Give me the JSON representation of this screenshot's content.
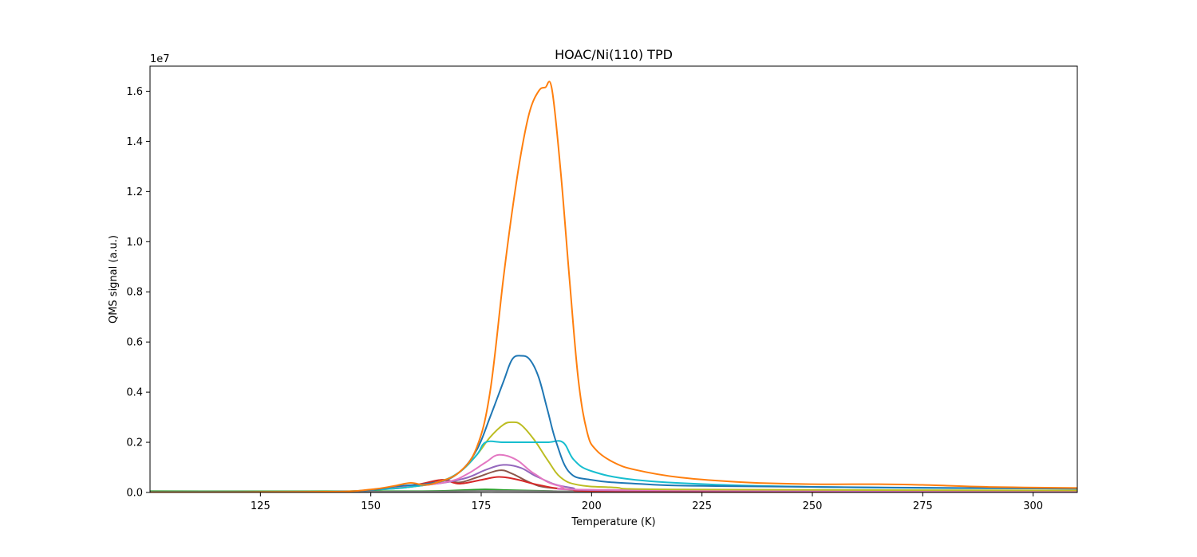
{
  "chart_data": {
    "type": "line",
    "title": "HOAC/Ni(110) TPD",
    "xlabel": "Temperature (K)",
    "ylabel": "QMS signal (a.u.)",
    "y_offset_label": "1e7",
    "xlim": [
      100,
      310
    ],
    "ylim": [
      0,
      1.7
    ],
    "x_ticks": [
      125,
      150,
      175,
      200,
      225,
      250,
      275,
      300
    ],
    "x_tick_labels": [
      "125",
      "150",
      "175",
      "200",
      "225",
      "250",
      "275",
      "300"
    ],
    "y_ticks": [
      0.0,
      0.2,
      0.4,
      0.6,
      0.8,
      1.0,
      1.2,
      1.4,
      1.6
    ],
    "y_tick_labels": [
      "0.0",
      "0.2",
      "0.4",
      "0.6",
      "0.8",
      "1.0",
      "1.2",
      "1.4",
      "1.6"
    ],
    "grid": false,
    "legend": "none",
    "series": [
      {
        "color": "#2ca02c",
        "x": [
          100,
          150,
          165,
          175,
          180,
          190,
          200,
          250,
          310
        ],
        "y": [
          0.005,
          0.005,
          0.006,
          0.012,
          0.01,
          0.006,
          0.004,
          0.003,
          0.003
        ]
      },
      {
        "color": "#7f7f7f",
        "x": [
          100,
          150,
          165,
          175,
          180,
          190,
          200,
          250,
          310
        ],
        "y": [
          0.002,
          0.003,
          0.004,
          0.006,
          0.006,
          0.005,
          0.004,
          0.003,
          0.003
        ]
      },
      {
        "color": "#8c564b",
        "x": [
          100,
          140,
          150,
          160,
          166,
          170,
          174,
          179,
          182,
          186,
          190,
          200,
          230,
          310
        ],
        "y": [
          0.0,
          0.002,
          0.01,
          0.025,
          0.05,
          0.04,
          0.06,
          0.088,
          0.075,
          0.04,
          0.02,
          0.01,
          0.005,
          0.004
        ]
      },
      {
        "color": "#d62728",
        "x": [
          100,
          140,
          150,
          160,
          166,
          170,
          175,
          179,
          183,
          188,
          195,
          210,
          310
        ],
        "y": [
          0.0,
          0.002,
          0.01,
          0.03,
          0.05,
          0.035,
          0.05,
          0.062,
          0.052,
          0.03,
          0.012,
          0.005,
          0.004
        ]
      },
      {
        "color": "#9467bd",
        "x": [
          100,
          140,
          150,
          160,
          167,
          172,
          176,
          180,
          184,
          188,
          195,
          210,
          310
        ],
        "y": [
          0.0,
          0.002,
          0.01,
          0.025,
          0.04,
          0.06,
          0.09,
          0.11,
          0.098,
          0.06,
          0.02,
          0.008,
          0.005
        ]
      },
      {
        "color": "#e377c2",
        "x": [
          100,
          140,
          150,
          160,
          168,
          172,
          176,
          179,
          183,
          187,
          193,
          205,
          310
        ],
        "y": [
          0.0,
          0.002,
          0.01,
          0.025,
          0.045,
          0.075,
          0.12,
          0.15,
          0.13,
          0.075,
          0.025,
          0.01,
          0.006
        ]
      },
      {
        "color": "#bcbd22",
        "x": [
          100,
          140,
          150,
          158,
          165,
          170,
          174,
          177,
          180,
          182,
          184,
          187,
          190,
          193,
          197,
          205,
          220,
          310
        ],
        "y": [
          0.0,
          0.003,
          0.01,
          0.02,
          0.04,
          0.08,
          0.15,
          0.22,
          0.27,
          0.28,
          0.27,
          0.21,
          0.13,
          0.06,
          0.03,
          0.02,
          0.012,
          0.008
        ]
      },
      {
        "color": "#17becf",
        "x": [
          100,
          140,
          150,
          158,
          165,
          170,
          174,
          176,
          180,
          185,
          190,
          193.5,
          196,
          200,
          210,
          230,
          260,
          310
        ],
        "y": [
          0.0,
          0.003,
          0.01,
          0.02,
          0.04,
          0.08,
          0.15,
          0.2,
          0.2,
          0.2,
          0.2,
          0.2,
          0.13,
          0.085,
          0.05,
          0.03,
          0.02,
          0.015
        ]
      },
      {
        "color": "#1f77b4",
        "x": [
          100,
          140,
          150,
          156,
          165,
          170,
          174,
          177,
          180,
          182,
          184,
          186,
          188,
          190,
          192,
          195,
          200,
          210,
          230,
          310
        ],
        "y": [
          0.0,
          0.003,
          0.01,
          0.025,
          0.04,
          0.08,
          0.17,
          0.3,
          0.44,
          0.53,
          0.545,
          0.53,
          0.46,
          0.33,
          0.2,
          0.08,
          0.05,
          0.035,
          0.025,
          0.015
        ]
      },
      {
        "color": "#ff7f0e",
        "x": [
          100,
          140,
          150,
          155,
          159,
          162,
          165,
          170,
          174,
          177,
          180,
          182,
          184,
          186,
          188,
          189.5,
          191,
          193,
          195,
          197,
          199,
          201,
          205,
          210,
          220,
          235,
          250,
          265,
          275,
          290,
          310
        ],
        "y": [
          0.0,
          0.003,
          0.012,
          0.025,
          0.038,
          0.03,
          0.04,
          0.08,
          0.18,
          0.4,
          0.85,
          1.12,
          1.35,
          1.52,
          1.6,
          1.615,
          1.61,
          1.28,
          0.85,
          0.45,
          0.24,
          0.17,
          0.12,
          0.09,
          0.06,
          0.04,
          0.033,
          0.033,
          0.03,
          0.022,
          0.018
        ]
      }
    ]
  }
}
